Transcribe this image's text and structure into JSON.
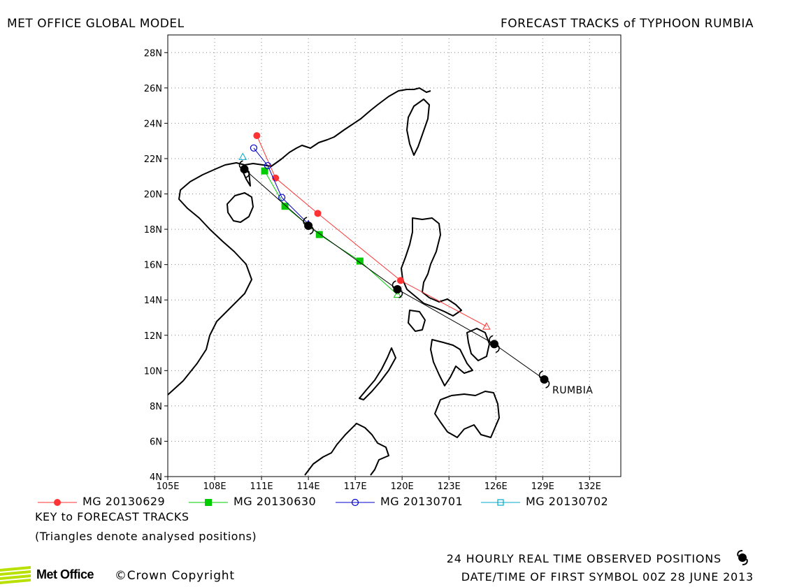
{
  "header": {
    "left_title": "MET OFFICE GLOBAL MODEL",
    "right_title": "FORECAST TRACKS of TYPHOON RUMBIA"
  },
  "map": {
    "lon_range": [
      105,
      134
    ],
    "lat_range": [
      4,
      29
    ],
    "lon_ticks": [
      "105E",
      "108E",
      "111E",
      "114E",
      "117E",
      "120E",
      "123E",
      "126E",
      "129E",
      "132E"
    ],
    "lat_ticks": [
      "4N",
      "6N",
      "8N",
      "10N",
      "12N",
      "14N",
      "16N",
      "18N",
      "20N",
      "22N",
      "24N",
      "26N",
      "28N"
    ],
    "storm_label": "RUMBIA",
    "colors": {
      "coast": "#000000",
      "grid": "#888888"
    }
  },
  "chart_data": {
    "type": "map-tracks",
    "observed_track": {
      "name": "24 HOURLY REAL TIME OBSERVED POSITIONS",
      "color": "#000000",
      "points": [
        [
          129.1,
          9.5
        ],
        [
          125.9,
          11.5
        ],
        [
          119.7,
          14.6
        ],
        [
          114.0,
          18.2
        ],
        [
          109.9,
          21.4
        ]
      ]
    },
    "forecast_tracks": [
      {
        "name": "MG 20130629",
        "color": "#ff3333",
        "marker": "filled-circle",
        "points": [
          [
            125.4,
            12.5
          ],
          [
            119.9,
            15.1
          ],
          [
            114.6,
            18.9
          ],
          [
            111.9,
            20.9
          ],
          [
            110.7,
            23.3
          ]
        ]
      },
      {
        "name": "MG 20130630",
        "color": "#00cc00",
        "marker": "filled-square",
        "points": [
          [
            119.7,
            14.3
          ],
          [
            117.3,
            16.2
          ],
          [
            114.7,
            17.7
          ],
          [
            112.5,
            19.3
          ],
          [
            111.2,
            21.3
          ]
        ]
      },
      {
        "name": "MG 20130701",
        "color": "#0000cc",
        "marker": "open-circle",
        "points": [
          [
            114.0,
            18.3
          ],
          [
            112.3,
            19.8
          ],
          [
            111.4,
            21.6
          ],
          [
            110.5,
            22.6
          ]
        ]
      },
      {
        "name": "MG 20130702",
        "color": "#00aacc",
        "marker": "open-square",
        "points": [
          [
            109.8,
            22.1
          ]
        ]
      }
    ]
  },
  "legend": {
    "items": [
      {
        "label": "MG 20130629",
        "color": "#ff3333",
        "marker": "filled-circle"
      },
      {
        "label": "MG 20130630",
        "color": "#00cc00",
        "marker": "filled-square"
      },
      {
        "label": "MG 20130701",
        "color": "#0000cc",
        "marker": "open-circle"
      },
      {
        "label": "MG 20130702",
        "color": "#00aacc",
        "marker": "open-square"
      }
    ],
    "key_title": "KEY to FORECAST TRACKS",
    "key_note": "(Triangles denote analysed positions)"
  },
  "footer": {
    "observed_label": "24 HOURLY REAL TIME OBSERVED POSITIONS",
    "first_symbol": "DATE/TIME OF FIRST SYMBOL 00Z 28 JUNE 2013",
    "logo_text": "Met Office",
    "copyright": "©Crown Copyright"
  }
}
